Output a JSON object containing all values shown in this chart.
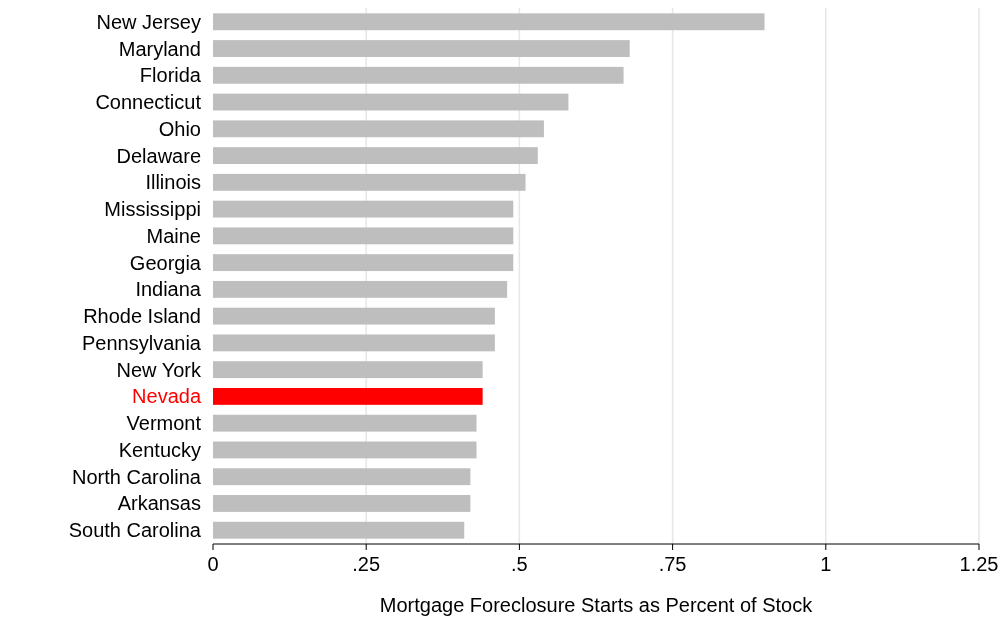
{
  "chart_data": {
    "type": "bar",
    "orientation": "horizontal",
    "xlabel": "Mortgage Foreclosure Starts as Percent of Stock",
    "categories": [
      "New Jersey",
      "Maryland",
      "Florida",
      "Connecticut",
      "Ohio",
      "Delaware",
      "Illinois",
      "Mississippi",
      "Maine",
      "Georgia",
      "Indiana",
      "Rhode Island",
      "Pennsylvania",
      "New York",
      "Nevada",
      "Vermont",
      "Kentucky",
      "North Carolina",
      "Arkansas",
      "South Carolina"
    ],
    "values": [
      0.9,
      0.68,
      0.67,
      0.58,
      0.54,
      0.53,
      0.51,
      0.49,
      0.49,
      0.49,
      0.48,
      0.46,
      0.46,
      0.44,
      0.44,
      0.43,
      0.43,
      0.42,
      0.42,
      0.41
    ],
    "color": "#bebebe",
    "colors": [
      "#bebebe",
      "#bebebe",
      "#bebebe",
      "#bebebe",
      "#bebebe",
      "#bebebe",
      "#bebebe",
      "#bebebe",
      "#bebebe",
      "#bebebe",
      "#bebebe",
      "#bebebe",
      "#bebebe",
      "#bebebe",
      "#ff0000",
      "#bebebe",
      "#bebebe",
      "#bebebe",
      "#bebebe",
      "#bebebe"
    ],
    "xlim": [
      0,
      1.25
    ],
    "xticks": [
      0,
      {
        "value": 0.25,
        "label": ".25"
      },
      {
        "value": 0.5,
        "label": ".5"
      },
      {
        "value": 0.75,
        "label": ".75"
      },
      1,
      1.25
    ],
    "grid": "x"
  }
}
